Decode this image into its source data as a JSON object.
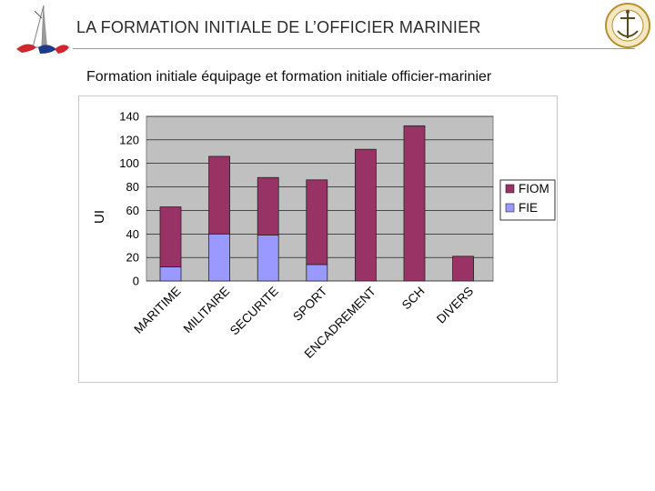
{
  "slide": {
    "title": "LA FORMATION INITIALE DE L’OFFICIER MARINIER",
    "subtitle": "Formation initiale équipage et formation initiale officier-marinier"
  },
  "colors": {
    "plot_background": "#c0c0c0",
    "fiom": "#993366",
    "fie": "#9999ff",
    "logo_red": "#d1262b",
    "logo_navy": "#1f3a8a",
    "emblem_gold": "#b8902a"
  },
  "icons": {
    "left_logo": "navy-ship-logo-icon",
    "right_logo": "naval-school-emblem-icon"
  },
  "chart_data": {
    "type": "bar",
    "stacked": true,
    "categories": [
      "MARITIME",
      "MILITAIRE",
      "SECURITE",
      "SPORT",
      "ENCADREMENT",
      "SCH",
      "DIVERS"
    ],
    "series": [
      {
        "name": "FIE",
        "values": [
          12,
          40,
          39,
          14,
          0,
          0,
          0
        ]
      },
      {
        "name": "FIOM",
        "values": [
          51,
          66,
          49,
          72,
          112,
          132,
          21
        ]
      }
    ],
    "ylabel": "UI",
    "xlabel": "",
    "ylim": [
      0,
      140
    ],
    "yticks": [
      0,
      20,
      40,
      60,
      80,
      100,
      120,
      140
    ],
    "grid": true,
    "legend": {
      "position": "right",
      "entries": [
        "FIOM",
        "FIE"
      ]
    }
  }
}
